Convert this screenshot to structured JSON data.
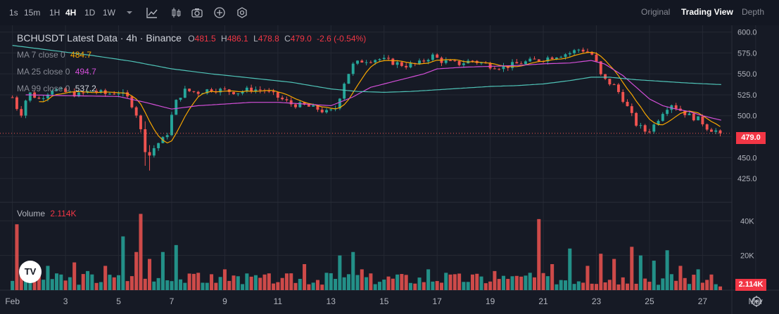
{
  "toolbar": {
    "intervals": [
      {
        "label": "1s",
        "active": false
      },
      {
        "label": "15m",
        "active": false
      },
      {
        "label": "1H",
        "active": false
      },
      {
        "label": "4H",
        "active": true
      },
      {
        "label": "1D",
        "active": false
      },
      {
        "label": "1W",
        "active": false
      }
    ],
    "icons": [
      "chevron-down-icon",
      "indicators-icon",
      "candle-type-icon",
      "camera-icon",
      "plus-circle-icon",
      "settings-hex-icon"
    ],
    "views": [
      {
        "label": "Original",
        "active": false
      },
      {
        "label": "Trading View",
        "active": true
      },
      {
        "label": "Depth",
        "active": false
      }
    ]
  },
  "legend": {
    "title": "BCHUSDT Latest Data · 4h · Binance",
    "o_label": "O",
    "o_value": "481.5",
    "h_label": "H",
    "h_value": "486.1",
    "l_label": "L",
    "l_value": "478.8",
    "c_label": "C",
    "c_value": "479.0",
    "change": "-2.6 (-0.54%)",
    "ma7_label": "MA 7 close 0",
    "ma7_value": "484.7",
    "ma25_label": "MA 25 close 0",
    "ma25_value": "494.7",
    "ma99_label": "MA 99 close 0",
    "ma99_value": "537.2",
    "volume_label": "Volume",
    "volume_value": "2.114K"
  },
  "colors": {
    "up": "#26a69a",
    "down": "#ef5350",
    "ma7": "#f7a600",
    "ma25": "#d34fd8",
    "ma99": "#4fc3b7",
    "bg": "#161a25"
  },
  "price_tag": "479.0",
  "volume_tag": "2.114K",
  "logo_text": "TV",
  "chart_data": [
    {
      "type": "candlestick",
      "title": "BCHUSDT Latest Data · 4h · Binance",
      "y_ticks": [
        "600.0",
        "575.0",
        "550.0",
        "525.0",
        "500.0",
        "475.0",
        "450.0",
        "425.0"
      ],
      "ylim": [
        410,
        603
      ],
      "x_ticks": [
        "Feb",
        "3",
        "5",
        "7",
        "9",
        "11",
        "13",
        "15",
        "17",
        "19",
        "21",
        "23",
        "25",
        "27",
        "Mar"
      ],
      "x_tick_days": [
        1,
        3,
        5,
        7,
        9,
        11,
        13,
        15,
        17,
        19,
        21,
        23,
        25,
        27,
        29
      ],
      "x_range_days": [
        0.85,
        28.05
      ],
      "last_price": 479.0,
      "series": [
        {
          "name": "MA 7 close 0",
          "last": 484.7
        },
        {
          "name": "MA 25 close 0",
          "last": 494.7
        },
        {
          "name": "MA 99 close 0",
          "last": 537.2
        }
      ],
      "anchors": [
        [
          1.0,
          522
        ],
        [
          1.3,
          500
        ],
        [
          1.6,
          528
        ],
        [
          2.0,
          520
        ],
        [
          2.5,
          532
        ],
        [
          3.0,
          528
        ],
        [
          3.5,
          525
        ],
        [
          4.0,
          530
        ],
        [
          4.5,
          526
        ],
        [
          5.0,
          528
        ],
        [
          5.4,
          520
        ],
        [
          5.7,
          500
        ],
        [
          6.0,
          460
        ],
        [
          6.15,
          452
        ],
        [
          6.4,
          465
        ],
        [
          6.8,
          475
        ],
        [
          7.0,
          500
        ],
        [
          7.2,
          520
        ],
        [
          7.5,
          530
        ],
        [
          8.0,
          528
        ],
        [
          8.5,
          532
        ],
        [
          9.0,
          530
        ],
        [
          9.5,
          528
        ],
        [
          10.0,
          532
        ],
        [
          10.5,
          530
        ],
        [
          11.0,
          522
        ],
        [
          11.5,
          514
        ],
        [
          12.0,
          512
        ],
        [
          12.5,
          508
        ],
        [
          12.9,
          503
        ],
        [
          13.2,
          510
        ],
        [
          13.5,
          540
        ],
        [
          13.8,
          560
        ],
        [
          14.2,
          566
        ],
        [
          14.8,
          568
        ],
        [
          15.3,
          564
        ],
        [
          15.8,
          560
        ],
        [
          16.3,
          562
        ],
        [
          16.8,
          572
        ],
        [
          17.2,
          565
        ],
        [
          17.8,
          562
        ],
        [
          18.3,
          566
        ],
        [
          19.0,
          560
        ],
        [
          19.5,
          558
        ],
        [
          20.0,
          562
        ],
        [
          20.5,
          565
        ],
        [
          21.0,
          568
        ],
        [
          21.5,
          572
        ],
        [
          22.0,
          575
        ],
        [
          22.4,
          580
        ],
        [
          22.9,
          572
        ],
        [
          23.2,
          545
        ],
        [
          23.7,
          535
        ],
        [
          24.0,
          520
        ],
        [
          24.5,
          490
        ],
        [
          24.9,
          480
        ],
        [
          25.2,
          490
        ],
        [
          25.5,
          505
        ],
        [
          25.8,
          515
        ],
        [
          26.1,
          508
        ],
        [
          26.5,
          500
        ],
        [
          26.9,
          495
        ],
        [
          27.2,
          485
        ],
        [
          27.5,
          482
        ],
        [
          27.7,
          479
        ]
      ],
      "ma25_anchors": [
        [
          1.5,
          525
        ],
        [
          3.0,
          524
        ],
        [
          5.0,
          523
        ],
        [
          6.0,
          516
        ],
        [
          7.0,
          508
        ],
        [
          8.0,
          512
        ],
        [
          9.0,
          514
        ],
        [
          10.0,
          516
        ],
        [
          11.0,
          516
        ],
        [
          12.0,
          514
        ],
        [
          13.0,
          512
        ],
        [
          13.8,
          522
        ],
        [
          14.5,
          534
        ],
        [
          15.5,
          542
        ],
        [
          16.5,
          550
        ],
        [
          17.0,
          556
        ],
        [
          18.0,
          558
        ],
        [
          19.0,
          559
        ],
        [
          20.0,
          560
        ],
        [
          21.0,
          562
        ],
        [
          22.0,
          563
        ],
        [
          22.8,
          566
        ],
        [
          23.3,
          562
        ],
        [
          24.0,
          548
        ],
        [
          24.5,
          534
        ],
        [
          25.0,
          520
        ],
        [
          25.5,
          512
        ],
        [
          26.0,
          508
        ],
        [
          26.5,
          505
        ],
        [
          27.0,
          500
        ],
        [
          27.7,
          494.7
        ]
      ],
      "ma99_anchors": [
        [
          1.0,
          584
        ],
        [
          2.5,
          578
        ],
        [
          4.0,
          572
        ],
        [
          5.5,
          565
        ],
        [
          7.0,
          556
        ],
        [
          8.5,
          550
        ],
        [
          10.0,
          545
        ],
        [
          11.5,
          540
        ],
        [
          13.0,
          532
        ],
        [
          14.0,
          529
        ],
        [
          15.0,
          528
        ],
        [
          16.0,
          529
        ],
        [
          17.0,
          531
        ],
        [
          18.0,
          533
        ],
        [
          19.0,
          535
        ],
        [
          20.0,
          536
        ],
        [
          21.0,
          538
        ],
        [
          22.0,
          542
        ],
        [
          22.8,
          546
        ],
        [
          23.5,
          546
        ],
        [
          24.5,
          543
        ],
        [
          25.5,
          541
        ],
        [
          26.5,
          539
        ],
        [
          27.7,
          537.2
        ]
      ]
    },
    {
      "type": "bar",
      "title": "Volume",
      "y_ticks": [
        "40K",
        "20K"
      ],
      "ylim": [
        0,
        45000
      ],
      "last_value": "2.114K",
      "spikes": [
        [
          1.1,
          38000
        ],
        [
          1.7,
          12000
        ],
        [
          2.3,
          14000
        ],
        [
          2.8,
          9000
        ],
        [
          3.3,
          16000
        ],
        [
          3.8,
          11000
        ],
        [
          4.5,
          14000
        ],
        [
          5.2,
          31000
        ],
        [
          5.6,
          22000
        ],
        [
          5.9,
          44000
        ],
        [
          6.2,
          18000
        ],
        [
          6.7,
          22000
        ],
        [
          7.1,
          26000
        ],
        [
          8.0,
          10000
        ],
        [
          9.0,
          12000
        ],
        [
          9.5,
          8000
        ],
        [
          10.5,
          9000
        ],
        [
          11.2,
          7000
        ],
        [
          12.0,
          15000
        ],
        [
          12.8,
          10000
        ],
        [
          13.4,
          20000
        ],
        [
          13.8,
          22000
        ],
        [
          14.2,
          12000
        ],
        [
          15.5,
          9000
        ],
        [
          16.6,
          12000
        ],
        [
          17.3,
          10000
        ],
        [
          18.3,
          9000
        ],
        [
          19.2,
          11000
        ],
        [
          19.8,
          8000
        ],
        [
          20.5,
          10000
        ],
        [
          20.9,
          41000
        ],
        [
          21.4,
          15000
        ],
        [
          22.0,
          24000
        ],
        [
          22.7,
          14000
        ],
        [
          23.2,
          21000
        ],
        [
          23.7,
          18000
        ],
        [
          24.3,
          25000
        ],
        [
          24.7,
          20000
        ],
        [
          25.2,
          17000
        ],
        [
          25.6,
          23000
        ],
        [
          26.2,
          14000
        ],
        [
          26.8,
          12000
        ],
        [
          27.3,
          9000
        ]
      ]
    }
  ]
}
